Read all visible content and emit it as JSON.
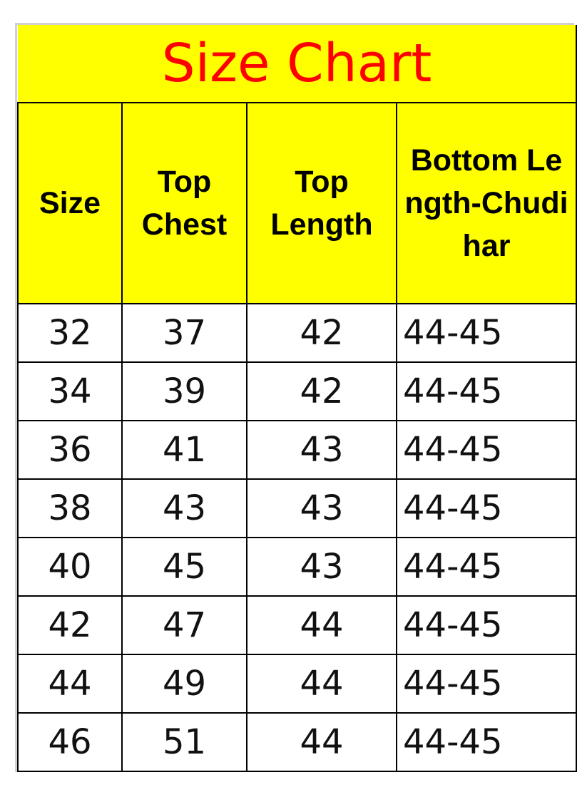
{
  "title": "Size Chart",
  "colors": {
    "header_bg": "#ffff00",
    "title_text": "#ff0000"
  },
  "columns": [
    "Size",
    "Top Chest",
    "Top Length",
    "Bottom Length-Chudihar"
  ],
  "rows": [
    [
      "32",
      "37",
      "42",
      "44-45"
    ],
    [
      "34",
      "39",
      "42",
      "44-45"
    ],
    [
      "36",
      "41",
      "43",
      "44-45"
    ],
    [
      "38",
      "43",
      "43",
      "44-45"
    ],
    [
      "40",
      "45",
      "43",
      "44-45"
    ],
    [
      "42",
      "47",
      "44",
      "44-45"
    ],
    [
      "44",
      "49",
      "44",
      "44-45"
    ],
    [
      "46",
      "51",
      "44",
      "44-45"
    ]
  ]
}
